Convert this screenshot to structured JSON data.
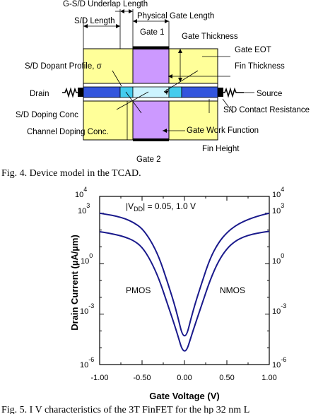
{
  "fig4": {
    "labels": {
      "underlap": "G-S/D Underlap Length",
      "sd_length": "S/D Length",
      "phys_gate": "Physical Gate Length",
      "gate1": "Gate 1",
      "gate_thickness": "Gate Thickness",
      "gate_eot": "Gate EOT",
      "dopant_profile": "S/D Dopant Profile, σ",
      "fin_thickness": "Fin Thickness",
      "drain": "Drain",
      "source": "Source",
      "sd_doping": "S/D Doping Conc",
      "sd_contact": "S/D Contact Resistance",
      "channel_doping": "Channel Doping Conc.",
      "work_function": "Gate Work Function",
      "gate2": "Gate 2",
      "fin_height": "Fin Height"
    },
    "caption": "Fig. 4. Device model in the TCAD."
  },
  "fig5": {
    "caption": "Fig. 5. I  V  characteristics of the 3T FinFET for the hp 32 nm L",
    "annotation_base": "|V",
    "annotation_sub": "DD",
    "annotation_rest": "| = 0.05, 1.0 V",
    "pmos": "PMOS",
    "nmos": "NMOS",
    "y_ticks": [
      {
        "base": "10",
        "exp": "4"
      },
      {
        "base": "10",
        "exp": "3"
      },
      {
        "base": "10",
        "exp": "0"
      },
      {
        "base": "10",
        "exp": "-3"
      },
      {
        "base": "10",
        "exp": "-6"
      }
    ]
  },
  "chart_data": {
    "type": "line",
    "xlabel": "Gate Voltage (V)",
    "ylabel": "Drain Current (µA/µm)",
    "xlim": [
      -1.0,
      1.0
    ],
    "ylim": [
      -6,
      4
    ],
    "y_scale": "log10",
    "x_ticks": [
      "-1.00",
      "-0.50",
      "0.00",
      "0.50",
      "1.00"
    ],
    "series": [
      {
        "x": [
          -1.0,
          -0.9,
          -0.8,
          -0.7,
          -0.6,
          -0.5,
          -0.4,
          -0.3,
          -0.2,
          -0.1,
          0.0,
          0.1,
          0.2,
          0.3,
          0.4,
          0.5,
          0.6,
          0.7,
          0.8,
          0.9,
          1.0
        ],
        "y": [
          3.0,
          2.92,
          2.82,
          2.68,
          2.45,
          2.1,
          1.4,
          0.4,
          -1.1,
          -2.7,
          -4.8,
          -2.8,
          -1.2,
          0.3,
          1.25,
          1.85,
          2.25,
          2.52,
          2.72,
          2.88,
          3.0
        ]
      },
      {
        "x": [
          -1.0,
          -0.9,
          -0.8,
          -0.7,
          -0.6,
          -0.5,
          -0.4,
          -0.3,
          -0.2,
          -0.1,
          0.0,
          0.1,
          0.2,
          0.3,
          0.4,
          0.5,
          0.6,
          0.7,
          0.8,
          0.9,
          1.0
        ],
        "y": [
          1.9,
          1.82,
          1.72,
          1.58,
          1.38,
          1.0,
          0.2,
          -0.9,
          -2.4,
          -3.9,
          -5.6,
          -4.0,
          -2.5,
          -1.0,
          0.15,
          0.9,
          1.35,
          1.6,
          1.75,
          1.85,
          1.92
        ]
      }
    ]
  }
}
